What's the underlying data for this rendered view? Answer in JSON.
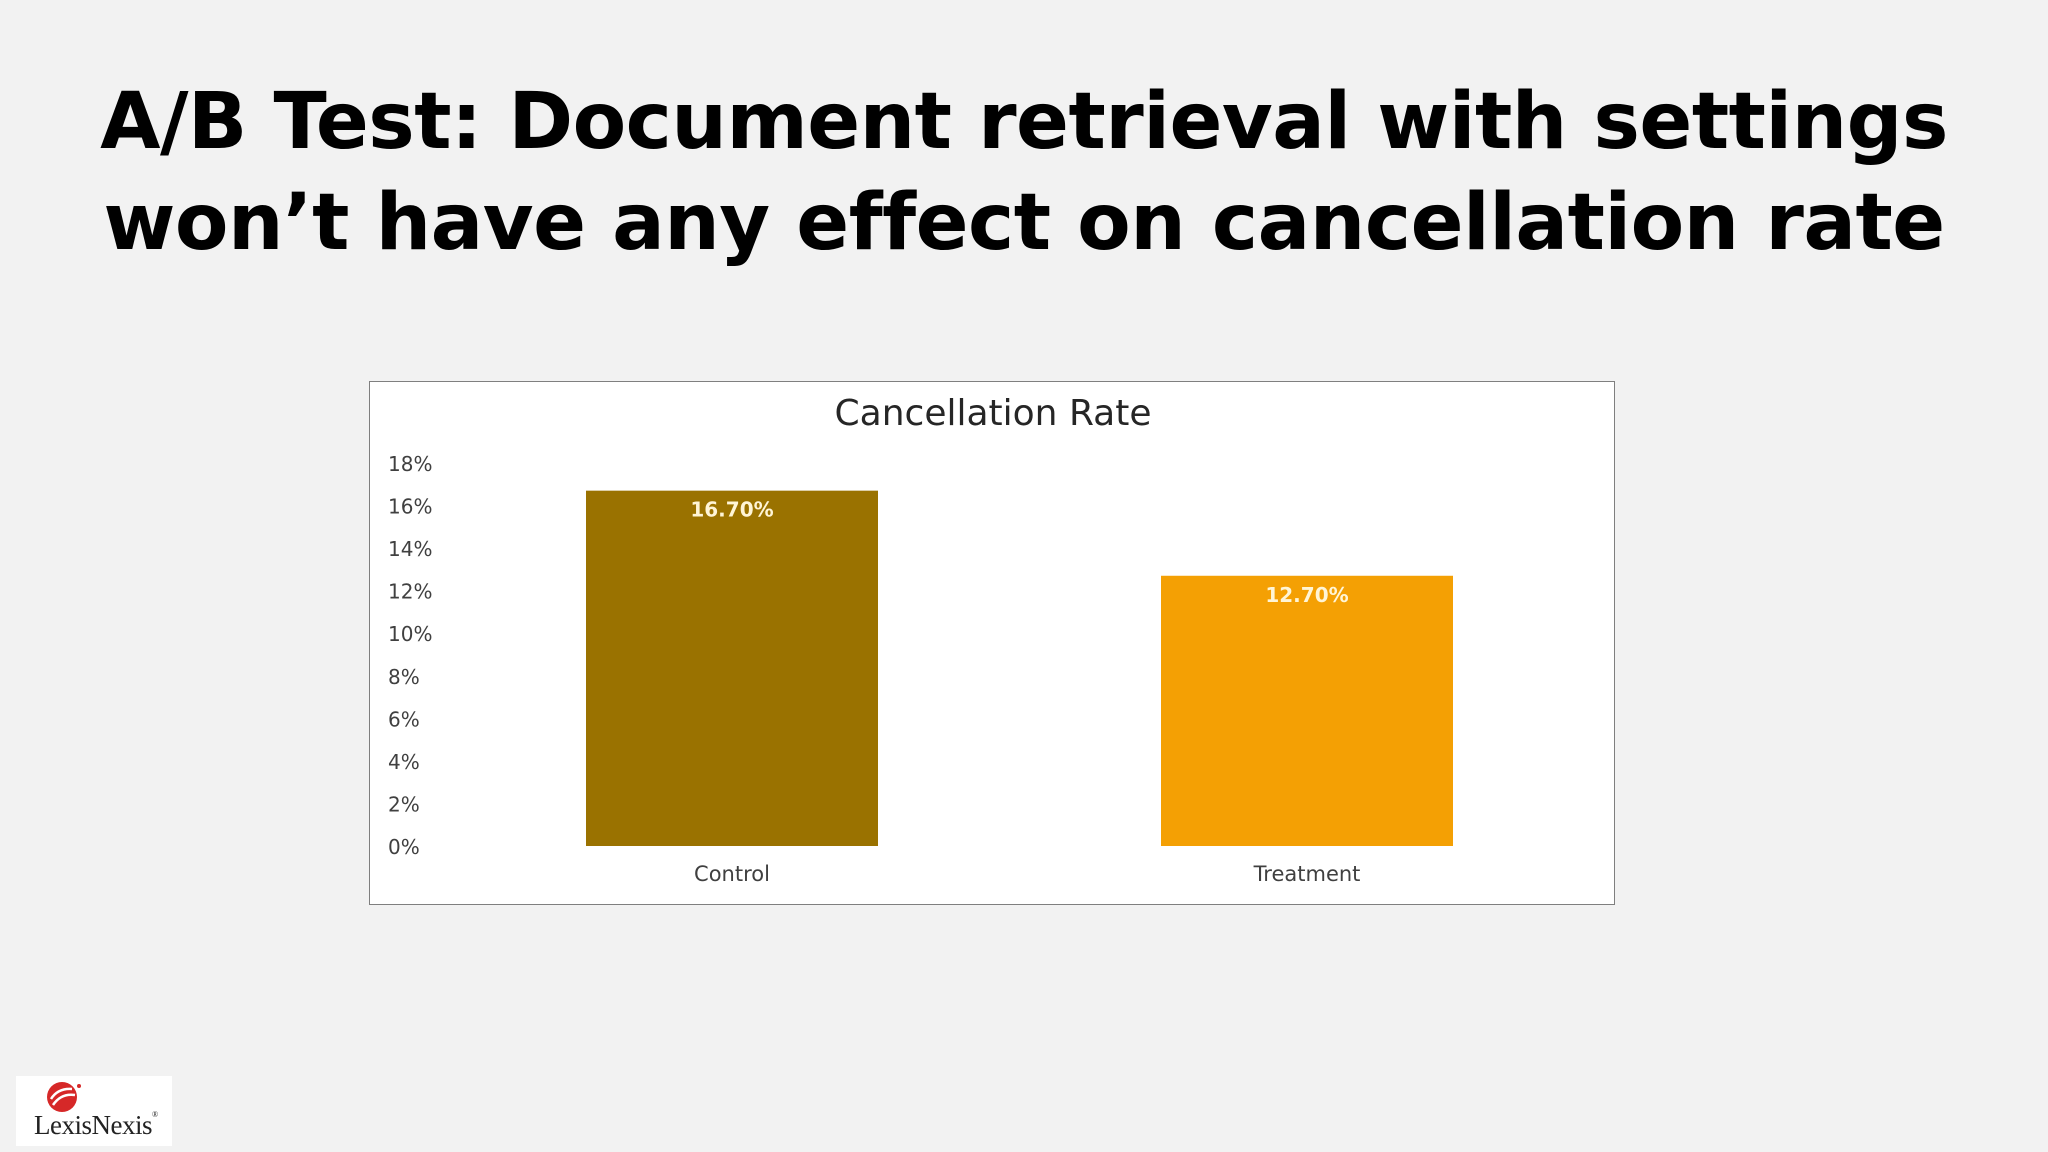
{
  "slide": {
    "title_line1": "A/B Test: Document retrieval with settings",
    "title_line2": "won’t have any effect on cancellation rate"
  },
  "chart_data": {
    "type": "bar",
    "title": "Cancellation Rate",
    "categories": [
      "Control",
      "Treatment"
    ],
    "values": [
      16.7,
      12.7
    ],
    "data_labels": [
      "16.70%",
      "12.70%"
    ],
    "bar_colors": [
      "#9a7200",
      "#f4a004"
    ],
    "data_label_color": "#fff5d6",
    "yticks": [
      "0%",
      "2%",
      "4%",
      "6%",
      "8%",
      "10%",
      "12%",
      "14%",
      "16%",
      "18%"
    ],
    "ylim": [
      0,
      18
    ],
    "xlabel": "",
    "ylabel": "",
    "grid": false,
    "legend": false
  },
  "logo": {
    "text": "LexisNexis",
    "mark_color": "#d62828",
    "icon": "lexisnexis-logo-icon"
  }
}
